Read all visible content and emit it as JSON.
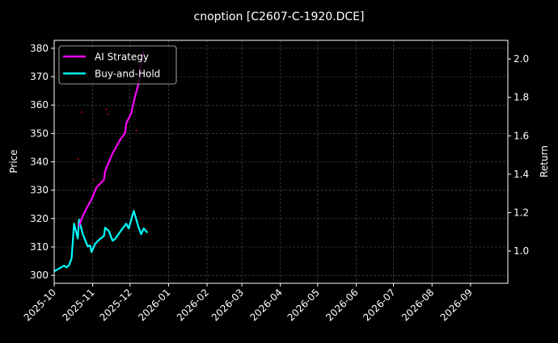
{
  "chart_data": {
    "type": "line",
    "title": "cnoption [C2607-C-1920.DCE]",
    "xlabel": "",
    "ylabel": "Price",
    "ylabel_right": "Return",
    "xlim": [
      "2025-10-01",
      "2026-10-01"
    ],
    "ylim": [
      297.2,
      382.8
    ],
    "ylim_right": [
      0.832,
      2.097
    ],
    "x_ticks": [
      "2025-10",
      "2025-11",
      "2025-12",
      "2026-01",
      "2026-02",
      "2026-03",
      "2026-04",
      "2026-05",
      "2026-06",
      "2026-07",
      "2026-08",
      "2026-09"
    ],
    "y_ticks": [
      300,
      310,
      320,
      330,
      340,
      350,
      360,
      370,
      380
    ],
    "y_ticks_right": [
      "1.0",
      "1.2",
      "1.4",
      "1.6",
      "1.8",
      "2.0"
    ],
    "grid": true,
    "legend_position": "top-left",
    "colors": {
      "background": "#000000",
      "ai": "#ff00ff",
      "bh": "#00ffff",
      "signal": "#ff0000",
      "grid": "#555555"
    },
    "series": [
      {
        "name": "AI Strategy",
        "color": "#ff00ff",
        "x": [
          "2025-10-21",
          "2025-10-24",
          "2025-10-28",
          "2025-10-31",
          "2025-11-04",
          "2025-11-10",
          "2025-11-11",
          "2025-11-17",
          "2025-11-23",
          "2025-11-27",
          "2025-11-28",
          "2025-12-02",
          "2025-12-05",
          "2025-12-08",
          "2025-12-10",
          "2025-12-12"
        ],
        "y": [
          317.3,
          321.0,
          324.4,
          326.7,
          331.0,
          333.6,
          336.7,
          343.0,
          347.8,
          350.1,
          353.5,
          357.2,
          362.9,
          367.7,
          375.2,
          379.1
        ]
      },
      {
        "name": "Buy-and-Hold",
        "color": "#00ffff",
        "x": [
          "2025-10-01",
          "2025-10-09",
          "2025-10-11",
          "2025-10-13",
          "2025-10-15",
          "2025-10-17",
          "2025-10-20",
          "2025-10-21",
          "2025-10-24",
          "2025-10-28",
          "2025-10-30",
          "2025-10-31",
          "2025-11-03",
          "2025-11-06",
          "2025-11-10",
          "2025-11-11",
          "2025-11-14",
          "2025-11-17",
          "2025-11-19",
          "2025-11-24",
          "2025-11-28",
          "2025-11-30",
          "2025-12-04",
          "2025-12-08",
          "2025-12-10",
          "2025-12-12",
          "2025-12-15"
        ],
        "y": [
          301.4,
          303.4,
          302.8,
          303.6,
          305.9,
          318.2,
          313.0,
          319.6,
          314.5,
          310.2,
          310.5,
          308.2,
          311.1,
          312.5,
          313.9,
          316.8,
          315.6,
          312.2,
          312.8,
          315.9,
          318.2,
          316.5,
          322.7,
          316.8,
          314.5,
          316.5,
          315.0
        ]
      }
    ],
    "signals": {
      "x": [
        "2025-10-20",
        "2025-10-23",
        "2025-11-02",
        "2025-11-12",
        "2025-11-13",
        "2025-12-06"
      ],
      "y": [
        341,
        357.5,
        333.5,
        358.5,
        356.8,
        351
      ]
    }
  }
}
